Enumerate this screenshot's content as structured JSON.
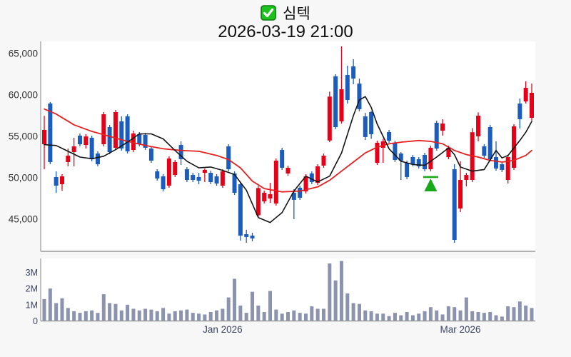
{
  "title": {
    "symbol": "심텍",
    "datetime": "2026-03-19 21:00",
    "checkbox_icon": "checked-green-checkbox"
  },
  "colors": {
    "up_candle": "#e60018",
    "down_candle": "#1b5cbd",
    "ma_short_line": "#141414",
    "ma_long_line": "#e62020",
    "volume_bar": "#8b93ae",
    "marker_green": "#18a818",
    "axis_line": "#9a9a9a",
    "price_label": "#303030",
    "volume_label": "#3d4462",
    "plot_background": "#ffffff",
    "page_background": "#f7f7f8"
  },
  "chart_data": [
    {
      "type": "candlestick",
      "title": "심텍 daily price",
      "ylabel": "",
      "ylim": [
        41500,
        66400
      ],
      "grid": false,
      "legend": "none",
      "y_ticks": [
        {
          "value": 65000,
          "label": "65,000"
        },
        {
          "value": 60000,
          "label": "60,000"
        },
        {
          "value": 55000,
          "label": "55,000"
        },
        {
          "value": 50000,
          "label": "50,000"
        },
        {
          "value": 45000,
          "label": "45,000"
        }
      ],
      "x_ticks": [
        {
          "index": 30,
          "label": "Jan 2026"
        },
        {
          "index": 70,
          "label": "Mar 2026"
        }
      ],
      "candles_ohlc": [
        [
          54050,
          57480,
          51030,
          55780
        ],
        [
          58970,
          59140,
          51640,
          51900
        ],
        [
          50090,
          50780,
          48190,
          49050
        ],
        [
          49220,
          50430,
          48450,
          50170
        ],
        [
          51900,
          53530,
          51380,
          52670
        ],
        [
          53100,
          54830,
          51380,
          53790
        ],
        [
          55090,
          55350,
          53790,
          54050
        ],
        [
          53960,
          55260,
          53530,
          54990
        ],
        [
          54830,
          55090,
          51980,
          52240
        ],
        [
          52930,
          53190,
          51380,
          51640
        ],
        [
          54050,
          57930,
          53790,
          57670
        ],
        [
          56120,
          56380,
          52840,
          53100
        ],
        [
          53620,
          58190,
          53360,
          57930
        ],
        [
          56810,
          57410,
          53270,
          53530
        ],
        [
          57410,
          57670,
          52930,
          53190
        ],
        [
          53360,
          55690,
          53100,
          55350
        ],
        [
          55260,
          55520,
          53790,
          54050
        ],
        [
          55170,
          55430,
          53360,
          53620
        ],
        [
          53530,
          53790,
          51810,
          52070
        ],
        [
          50780,
          51030,
          49650,
          49910
        ],
        [
          50170,
          50430,
          48360,
          48620
        ],
        [
          49050,
          52580,
          48790,
          52330
        ],
        [
          50340,
          52150,
          50090,
          51900
        ],
        [
          53960,
          54400,
          51550,
          52240
        ],
        [
          51030,
          51290,
          49480,
          49740
        ],
        [
          50340,
          50600,
          49480,
          49740
        ],
        [
          50090,
          50600,
          49220,
          49650
        ],
        [
          50600,
          51120,
          49480,
          50950
        ],
        [
          50600,
          50860,
          49220,
          49480
        ],
        [
          50170,
          50430,
          49050,
          49310
        ],
        [
          49050,
          51030,
          48790,
          50780
        ],
        [
          53790,
          54050,
          50780,
          51030
        ],
        [
          50520,
          50780,
          47930,
          48190
        ],
        [
          49220,
          49480,
          42410,
          43020
        ],
        [
          43190,
          43710,
          42160,
          42850
        ],
        [
          43020,
          43360,
          42330,
          42680
        ],
        [
          45480,
          49010,
          45220,
          48760
        ],
        [
          47160,
          48450,
          46900,
          48190
        ],
        [
          47500,
          49390,
          46990,
          48020
        ],
        [
          46900,
          52330,
          46640,
          52070
        ],
        [
          53360,
          53620,
          50950,
          51210
        ],
        [
          50520,
          51470,
          50260,
          51210
        ],
        [
          48190,
          48620,
          45000,
          47330
        ],
        [
          48790,
          49050,
          47330,
          47590
        ],
        [
          48360,
          50430,
          48100,
          50170
        ],
        [
          50520,
          50780,
          49220,
          49480
        ],
        [
          49390,
          51640,
          49130,
          51380
        ],
        [
          51470,
          52930,
          51210,
          52670
        ],
        [
          54500,
          60400,
          54300,
          59800
        ],
        [
          62240,
          62500,
          55860,
          56120
        ],
        [
          56810,
          65860,
          56550,
          60690
        ],
        [
          62410,
          63530,
          58970,
          59400
        ],
        [
          63450,
          64310,
          61290,
          61980
        ],
        [
          61380,
          61980,
          58020,
          58280
        ],
        [
          57410,
          57840,
          54570,
          54920
        ],
        [
          57930,
          58100,
          54700,
          55260
        ],
        [
          51810,
          54480,
          51550,
          54230
        ],
        [
          53620,
          54700,
          51810,
          54400
        ],
        [
          55520,
          55780,
          54230,
          54480
        ],
        [
          54230,
          54480,
          51900,
          52150
        ],
        [
          52930,
          53100,
          49740,
          52070
        ],
        [
          51810,
          52070,
          49830,
          50090
        ],
        [
          52500,
          52760,
          51380,
          51640
        ],
        [
          52240,
          52500,
          51120,
          51380
        ],
        [
          52760,
          53020,
          50780,
          51030
        ],
        [
          51030,
          53880,
          50780,
          53620
        ],
        [
          56640,
          56900,
          53270,
          53530
        ],
        [
          55690,
          57070,
          55090,
          56550
        ],
        [
          52500,
          53880,
          52240,
          53620
        ],
        [
          51030,
          51640,
          42160,
          42500
        ],
        [
          46290,
          51990,
          45860,
          49740
        ],
        [
          49740,
          50600,
          48960,
          50340
        ],
        [
          49740,
          56000,
          49480,
          55500
        ],
        [
          55000,
          57900,
          54400,
          57500
        ],
        [
          53790,
          54050,
          52410,
          52670
        ],
        [
          56120,
          56380,
          51980,
          52240
        ],
        [
          52500,
          54400,
          50860,
          51120
        ],
        [
          51640,
          51900,
          50690,
          50950
        ],
        [
          49740,
          52760,
          49310,
          52500
        ],
        [
          51210,
          56470,
          50950,
          56210
        ],
        [
          58970,
          59570,
          55950,
          57070
        ],
        [
          59220,
          61640,
          58970,
          60860
        ],
        [
          57240,
          61380,
          56900,
          60260
        ]
      ],
      "ma_short": [
        [
          0,
          54000
        ],
        [
          2,
          53900
        ],
        [
          4,
          53200
        ],
        [
          6,
          52500
        ],
        [
          8,
          52300
        ],
        [
          10,
          52600
        ],
        [
          12,
          53400
        ],
        [
          14,
          54300
        ],
        [
          16,
          55300
        ],
        [
          18,
          55300
        ],
        [
          20,
          54700
        ],
        [
          22,
          53300
        ],
        [
          24,
          52000
        ],
        [
          26,
          51200
        ],
        [
          28,
          51300
        ],
        [
          30,
          50900
        ],
        [
          32,
          50400
        ],
        [
          34,
          48500
        ],
        [
          36,
          45200
        ],
        [
          38,
          44600
        ],
        [
          40,
          45800
        ],
        [
          42,
          48400
        ],
        [
          44,
          50200
        ],
        [
          46,
          49500
        ],
        [
          48,
          50200
        ],
        [
          50,
          53000
        ],
        [
          52,
          57500
        ],
        [
          53,
          59400
        ],
        [
          54,
          59800
        ],
        [
          55,
          58500
        ],
        [
          56,
          56500
        ],
        [
          58,
          53500
        ],
        [
          60,
          52000
        ],
        [
          62,
          51600
        ],
        [
          64,
          51500
        ],
        [
          66,
          52500
        ],
        [
          68,
          53600
        ],
        [
          69,
          52800
        ],
        [
          70,
          51300
        ],
        [
          72,
          50800
        ],
        [
          74,
          51000
        ],
        [
          76,
          53300
        ],
        [
          77,
          52400
        ],
        [
          78,
          52700
        ],
        [
          80,
          54500
        ],
        [
          81,
          55500
        ],
        [
          82,
          56800
        ]
      ],
      "ma_long": [
        [
          0,
          58300
        ],
        [
          2,
          57700
        ],
        [
          5,
          56400
        ],
        [
          8,
          55600
        ],
        [
          11,
          55000
        ],
        [
          14,
          54400
        ],
        [
          17,
          53900
        ],
        [
          20,
          53500
        ],
        [
          23,
          53300
        ],
        [
          26,
          53200
        ],
        [
          29,
          52700
        ],
        [
          31,
          52200
        ],
        [
          33,
          51200
        ],
        [
          35,
          49600
        ],
        [
          37,
          48700
        ],
        [
          40,
          48300
        ],
        [
          43,
          48400
        ],
        [
          46,
          48900
        ],
        [
          48,
          49700
        ],
        [
          50,
          50800
        ],
        [
          52,
          51900
        ],
        [
          54,
          53000
        ],
        [
          56,
          53700
        ],
        [
          58,
          54100
        ],
        [
          60,
          54300
        ],
        [
          63,
          54500
        ],
        [
          65,
          54400
        ],
        [
          67,
          54100
        ],
        [
          69,
          53300
        ],
        [
          71,
          52800
        ],
        [
          73,
          52500
        ],
        [
          75,
          52100
        ],
        [
          77,
          51900
        ],
        [
          79,
          52100
        ],
        [
          81,
          52700
        ],
        [
          82,
          53300
        ]
      ],
      "marker": {
        "type": "triangle-up-with-bar",
        "meaning": "buy-signal-marker",
        "index": 65,
        "bar_price": 50090,
        "apex_price": 49910,
        "base_price": 48360
      }
    },
    {
      "type": "bar",
      "title": "volume",
      "ylim_millions": [
        0,
        3.85
      ],
      "y_ticks": [
        {
          "value": 3,
          "label": "3M"
        },
        {
          "value": 2,
          "label": "2M"
        },
        {
          "value": 1,
          "label": "1M"
        },
        {
          "value": 0,
          "label": "0"
        }
      ],
      "values_millions": [
        1.35,
        2.0,
        1.1,
        1.4,
        0.8,
        0.6,
        0.5,
        0.6,
        0.65,
        0.5,
        1.65,
        1.1,
        1.05,
        0.65,
        1.0,
        0.75,
        0.65,
        0.75,
        0.7,
        0.6,
        0.8,
        0.45,
        0.6,
        0.65,
        0.7,
        0.5,
        0.45,
        0.4,
        0.55,
        0.65,
        0.75,
        1.45,
        2.6,
        0.95,
        0.5,
        1.8,
        0.95,
        0.55,
        1.85,
        0.7,
        0.45,
        0.55,
        0.65,
        0.5,
        0.45,
        0.9,
        0.75,
        0.75,
        3.55,
        2.5,
        3.7,
        1.7,
        1.1,
        1.05,
        0.65,
        0.6,
        0.45,
        0.45,
        0.3,
        0.5,
        0.35,
        0.55,
        0.35,
        0.45,
        0.6,
        0.85,
        0.65,
        0.4,
        0.9,
        0.85,
        0.65,
        1.45,
        0.6,
        0.55,
        0.5,
        0.55,
        0.35,
        0.27,
        0.9,
        0.85,
        1.2,
        0.95,
        0.8
      ]
    }
  ]
}
